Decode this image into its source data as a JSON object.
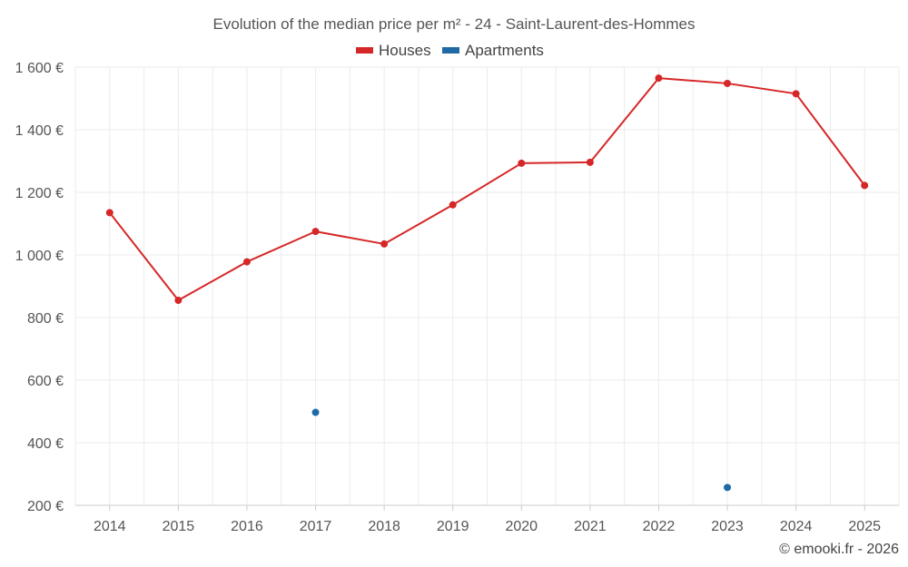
{
  "chart_data": {
    "type": "line",
    "title": "Evolution of the median price per m² - 24 - Saint-Laurent-des-Hommes",
    "categories": [
      "2014",
      "2015",
      "2016",
      "2017",
      "2018",
      "2019",
      "2020",
      "2021",
      "2022",
      "2023",
      "2024",
      "2025"
    ],
    "ylim": [
      200,
      1600
    ],
    "yticks": [
      200,
      400,
      600,
      800,
      1000,
      1200,
      1400,
      1600
    ],
    "ytick_labels": [
      "200 €",
      "400 €",
      "600 €",
      "800 €",
      "1 000 €",
      "1 200 €",
      "1 400 €",
      "1 600 €"
    ],
    "xlabel": "",
    "ylabel": "",
    "grid": true,
    "legend_position": "top-center",
    "series": [
      {
        "name": "Houses",
        "color": "#d62728",
        "values": [
          1135,
          855,
          978,
          1075,
          1035,
          1160,
          1293,
          1296,
          1565,
          1548,
          1515,
          1222
        ]
      },
      {
        "name": "Apartments",
        "color": "#1f6aa5",
        "values": [
          null,
          null,
          null,
          497,
          null,
          null,
          null,
          null,
          null,
          257,
          null,
          null
        ]
      }
    ]
  },
  "credit": "© emooki.fr - 2026"
}
